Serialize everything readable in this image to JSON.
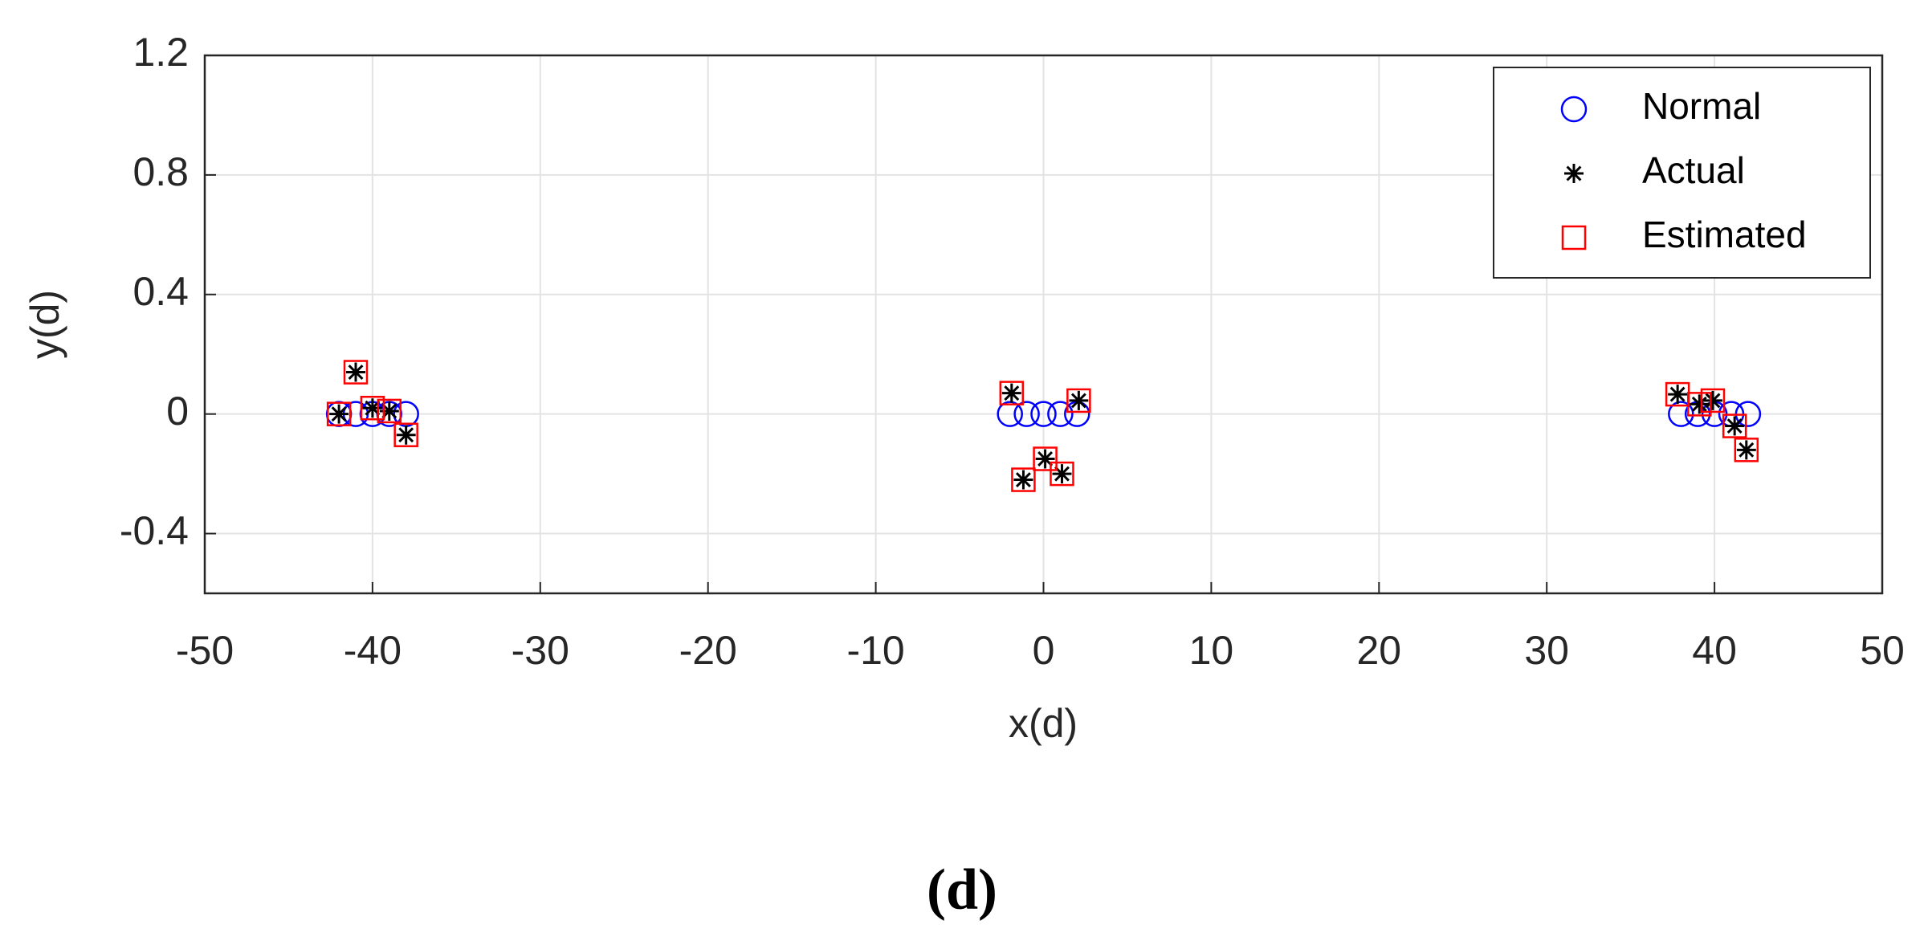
{
  "chart_data": {
    "type": "scatter",
    "xlabel": "x(d)",
    "ylabel": "y(d)",
    "caption": "(d)",
    "xlim": [
      -50,
      50
    ],
    "xticks": [
      -50,
      -40,
      -30,
      -20,
      -10,
      0,
      10,
      20,
      30,
      40,
      50
    ],
    "ylim": [
      -0.6,
      1.2
    ],
    "yticks": [
      -0.4,
      0,
      0.4,
      0.8,
      1.2
    ],
    "grid": true,
    "legend": "upper right",
    "series": [
      {
        "name": "Normal",
        "color": "#0000ff",
        "marker": "circle",
        "x": [
          -42,
          -41,
          -40,
          -39,
          -38,
          -2,
          -1,
          0,
          1,
          2,
          38,
          39,
          40,
          41,
          42
        ],
        "values": [
          0,
          0,
          0,
          0,
          0,
          0,
          0,
          0,
          0,
          0,
          0,
          0,
          0,
          0,
          0
        ]
      },
      {
        "name": "Actual",
        "color": "#000000",
        "marker": "star",
        "x": [
          -42,
          -41,
          -40,
          -39,
          -38,
          -1.9,
          -1.2,
          0.1,
          1.1,
          2.1,
          37.8,
          39.1,
          39.9,
          41.2,
          41.9
        ],
        "values": [
          0,
          0.14,
          0.02,
          0.01,
          -0.07,
          0.07,
          -0.22,
          -0.15,
          -0.2,
          0.045,
          0.066,
          0.033,
          0.045,
          -0.04,
          -0.12
        ]
      },
      {
        "name": "Estimated",
        "color": "#ff0000",
        "marker": "square",
        "x": [
          -42,
          -41,
          -40,
          -39,
          -38,
          -1.9,
          -1.2,
          0.1,
          1.1,
          2.1,
          37.8,
          39.1,
          39.9,
          41.2,
          41.9
        ],
        "values": [
          0,
          0.14,
          0.02,
          0.01,
          -0.07,
          0.07,
          -0.22,
          -0.15,
          -0.2,
          0.045,
          0.066,
          0.033,
          0.045,
          -0.04,
          -0.12
        ]
      }
    ]
  }
}
